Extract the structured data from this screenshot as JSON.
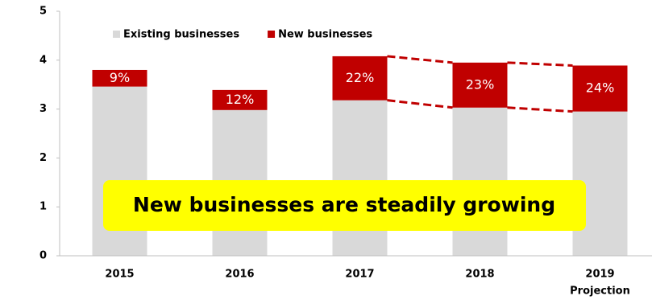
{
  "chart_data": {
    "type": "stacked_bar",
    "categories": [
      "2015",
      "2016",
      "2017",
      "2018",
      "2019"
    ],
    "category_note": "Projection",
    "series": [
      {
        "name": "Existing businesses",
        "color": "#d9d9d9",
        "values": [
          3.46,
          2.98,
          3.18,
          3.03,
          2.95
        ]
      },
      {
        "name": "New businesses",
        "color": "#c00000",
        "values": [
          0.34,
          0.41,
          0.9,
          0.92,
          0.94
        ],
        "share_labels": [
          "9%",
          "12%",
          "22%",
          "23%",
          "24%"
        ]
      }
    ],
    "ylim": [
      0,
      5
    ],
    "yticks": [
      0,
      1,
      2,
      3,
      4,
      5
    ],
    "legend": "top-left",
    "annotation": "New businesses are steadily growing",
    "connectors_from": 2
  }
}
